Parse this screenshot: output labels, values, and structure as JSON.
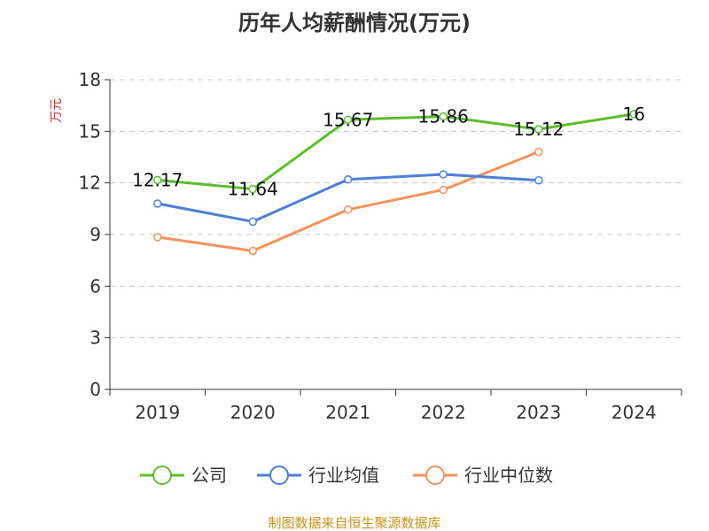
{
  "chart_data": {
    "type": "line",
    "title": "历年人均薪酬情况(万元)",
    "ylabel": "万元",
    "categories": [
      "2019",
      "2020",
      "2021",
      "2022",
      "2023",
      "2024"
    ],
    "ylim": [
      0,
      18
    ],
    "yticks": [
      0,
      3,
      6,
      9,
      12,
      15,
      18
    ],
    "grid": true,
    "legend_position": "bottom",
    "series": [
      {
        "name": "公司",
        "color": "#5cbf2a",
        "values": [
          12.17,
          11.64,
          15.67,
          15.86,
          15.12,
          16
        ],
        "labels": [
          "12.17",
          "11.64",
          "15.67",
          "15.86",
          "15.12",
          "16"
        ]
      },
      {
        "name": "行业均值",
        "color": "#4e7fd8",
        "values": [
          10.8,
          9.75,
          12.2,
          12.5,
          12.15,
          null
        ]
      },
      {
        "name": "行业中位数",
        "color": "#f5925a",
        "values": [
          8.85,
          8.05,
          10.45,
          11.6,
          13.8,
          null
        ]
      }
    ],
    "source": "制图数据来自恒生聚源数据库"
  }
}
